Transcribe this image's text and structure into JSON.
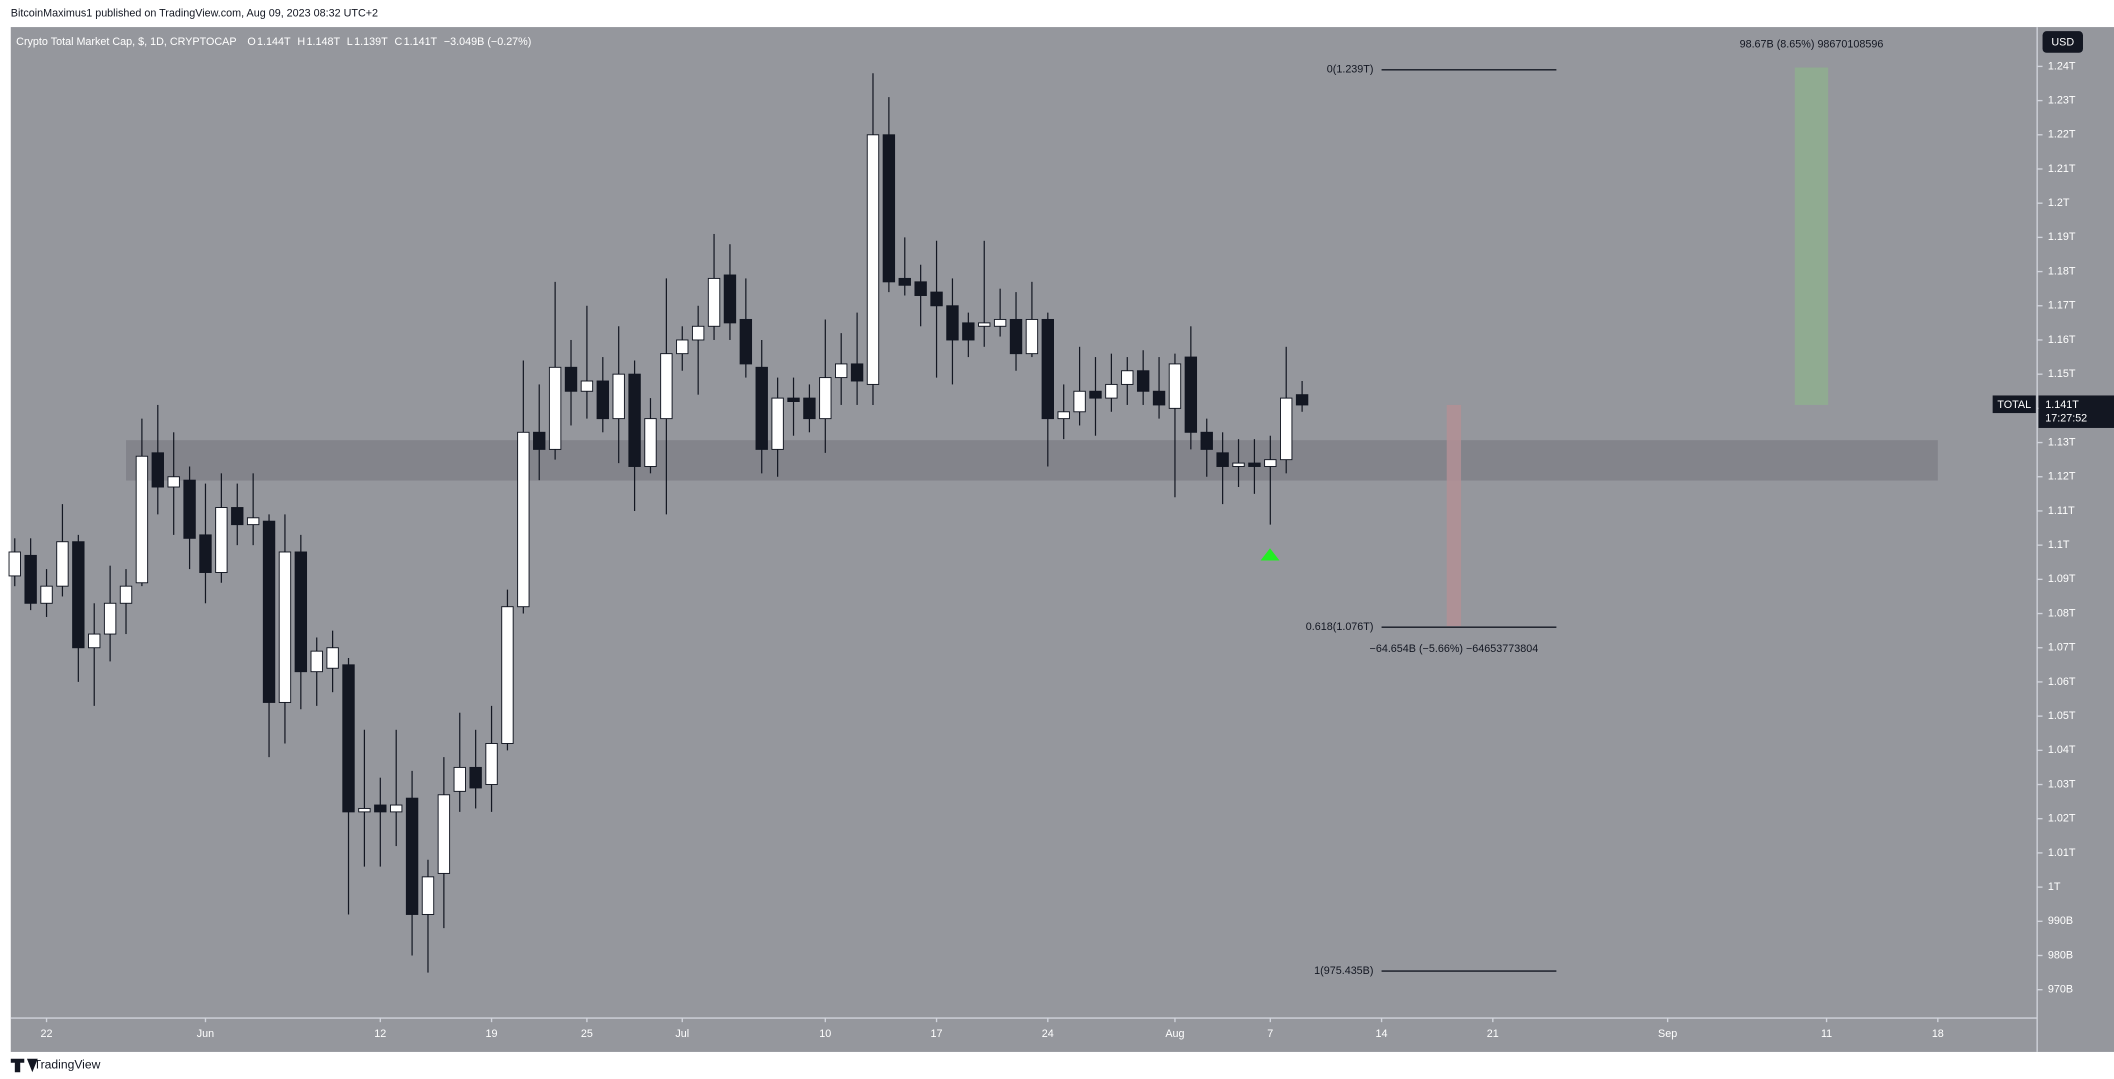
{
  "header": {
    "byline": "BitcoinMaximus1 published on TradingView.com, Aug 09, 2023 08:32 UTC+2",
    "brand": "TradingView"
  },
  "chart_data": {
    "type": "candlestick",
    "title": "Crypto Total Market Cap, $, 1D, CRYPTOCAP",
    "legend_ohlc": [
      {
        "key": "O",
        "value": "1.144T"
      },
      {
        "key": "H",
        "value": "1.148T"
      },
      {
        "key": "L",
        "value": "1.139T"
      },
      {
        "key": "C",
        "value": "1.141T"
      }
    ],
    "legend_change": "−3.049B (−0.27%)",
    "currency": "USD",
    "up_color": "#ffffff",
    "down_color": "#131722",
    "background": "#95979d",
    "open": [
      1091,
      1097,
      1083,
      1088,
      1101,
      1070,
      1074,
      1083,
      1089,
      1127,
      1117,
      1119,
      1103,
      1092,
      1111,
      1106,
      1107,
      1054,
      1098,
      1063,
      1064,
      1065,
      1022,
      1024,
      1022,
      1026,
      992,
      1004,
      1028,
      1035,
      1030,
      1042,
      1082,
      1133,
      1128,
      1152,
      1145,
      1148,
      1137,
      1150,
      1123,
      1137,
      1156,
      1160,
      1164,
      1179,
      1166,
      1152,
      1128,
      1143,
      1143,
      1137,
      1149,
      1153,
      1147,
      1220,
      1178,
      1177,
      1174,
      1170,
      1165,
      1164,
      1164,
      1166,
      1156,
      1166,
      1137,
      1139,
      1145,
      1143,
      1147,
      1151,
      1145,
      1140,
      1155,
      1133,
      1127,
      1123,
      1124,
      1123,
      1125,
      1144
    ],
    "high": [
      1102,
      1102,
      1093,
      1112,
      1103,
      1083,
      1094,
      1093,
      1137,
      1141,
      1133,
      1123,
      1118,
      1121,
      1118,
      1121,
      1109,
      1109,
      1103,
      1073,
      1075,
      1067,
      1046,
      1032,
      1046,
      1034,
      1008,
      1038,
      1051,
      1046,
      1053,
      1087,
      1154,
      1147,
      1177,
      1160,
      1170,
      1155,
      1164,
      1154,
      1143,
      1178,
      1164,
      1170,
      1191,
      1188,
      1178,
      1160,
      1149,
      1149,
      1147,
      1166,
      1162,
      1168,
      1238,
      1231,
      1190,
      1182,
      1189,
      1178,
      1168,
      1189,
      1175,
      1174,
      1177,
      1168,
      1147,
      1158,
      1155,
      1156,
      1155,
      1157,
      1155,
      1156,
      1164,
      1137,
      1133,
      1131,
      1131,
      1132,
      1158,
      1148
    ],
    "low": [
      1088,
      1081,
      1079,
      1085,
      1060,
      1053,
      1066,
      1074,
      1088,
      1109,
      1103,
      1093,
      1083,
      1089,
      1100,
      1100,
      1038,
      1042,
      1052,
      1053,
      1057,
      992,
      1006,
      1006,
      1012,
      980,
      975,
      988,
      1022,
      1023,
      1022,
      1040,
      1080,
      1119,
      1125,
      1135,
      1137,
      1133,
      1124,
      1110,
      1121,
      1109,
      1151,
      1144,
      1160,
      1160,
      1149,
      1121,
      1120,
      1132,
      1133,
      1127,
      1141,
      1141,
      1141,
      1174,
      1173,
      1164,
      1149,
      1147,
      1155,
      1158,
      1161,
      1151,
      1155,
      1123,
      1131,
      1135,
      1132,
      1139,
      1141,
      1141,
      1137,
      1114,
      1128,
      1120,
      1112,
      1117,
      1115,
      1106,
      1121,
      1139
    ],
    "close": [
      1098,
      1083,
      1088,
      1101,
      1070,
      1074,
      1083,
      1088,
      1126,
      1117,
      1120,
      1102,
      1092,
      1111,
      1106,
      1108,
      1054,
      1098,
      1063,
      1069,
      1070,
      1022,
      1023,
      1022,
      1024,
      992,
      1003,
      1027,
      1035,
      1029,
      1042,
      1082,
      1133,
      1128,
      1152,
      1145,
      1148,
      1137,
      1150,
      1123,
      1137,
      1156,
      1160,
      1164,
      1178,
      1165,
      1153,
      1128,
      1143,
      1142,
      1137,
      1149,
      1153,
      1148,
      1220,
      1177,
      1176,
      1173,
      1170,
      1160,
      1160,
      1165,
      1166,
      1156,
      1166,
      1137,
      1139,
      1145,
      1143,
      1147,
      1151,
      1145,
      1141,
      1153,
      1133,
      1128,
      1123,
      1124,
      1123,
      1125,
      1143,
      1141
    ],
    "xlim": [
      -0.25,
      127.25
    ],
    "xticks": [
      {
        "value": 2,
        "label": "22"
      },
      {
        "value": 12,
        "label": "Jun"
      },
      {
        "value": 23,
        "label": "12"
      },
      {
        "value": 30,
        "label": "19"
      },
      {
        "value": 36,
        "label": "25"
      },
      {
        "value": 42,
        "label": "Jul"
      },
      {
        "value": 51,
        "label": "10"
      },
      {
        "value": 58,
        "label": "17"
      },
      {
        "value": 65,
        "label": "24"
      },
      {
        "value": 73,
        "label": "Aug"
      },
      {
        "value": 79,
        "label": "7"
      },
      {
        "value": 86,
        "label": "14"
      },
      {
        "value": 93,
        "label": "21"
      },
      {
        "value": 104,
        "label": "Sep"
      },
      {
        "value": 114,
        "label": "11"
      },
      {
        "value": 121,
        "label": "18"
      }
    ],
    "ylim": [
      961.7,
      1251.5
    ],
    "yticks": [
      {
        "value": 1240,
        "label": "1.24T"
      },
      {
        "value": 1230,
        "label": "1.23T"
      },
      {
        "value": 1220,
        "label": "1.22T"
      },
      {
        "value": 1210,
        "label": "1.21T"
      },
      {
        "value": 1200,
        "label": "1.2T"
      },
      {
        "value": 1190,
        "label": "1.19T"
      },
      {
        "value": 1180,
        "label": "1.18T"
      },
      {
        "value": 1170,
        "label": "1.17T"
      },
      {
        "value": 1160,
        "label": "1.16T"
      },
      {
        "value": 1150,
        "label": "1.15T"
      },
      {
        "value": 1140,
        "label": "1.14T"
      },
      {
        "value": 1130,
        "label": "1.13T"
      },
      {
        "value": 1120,
        "label": "1.12T"
      },
      {
        "value": 1110,
        "label": "1.11T"
      },
      {
        "value": 1100,
        "label": "1.1T"
      },
      {
        "value": 1090,
        "label": "1.09T"
      },
      {
        "value": 1080,
        "label": "1.08T"
      },
      {
        "value": 1070,
        "label": "1.07T"
      },
      {
        "value": 1060,
        "label": "1.06T"
      },
      {
        "value": 1050,
        "label": "1.05T"
      },
      {
        "value": 1040,
        "label": "1.04T"
      },
      {
        "value": 1030,
        "label": "1.03T"
      },
      {
        "value": 1020,
        "label": "1.02T"
      },
      {
        "value": 1010,
        "label": "1.01T"
      },
      {
        "value": 1000,
        "label": "1T"
      },
      {
        "value": 990,
        "label": "990B"
      },
      {
        "value": 980,
        "label": "980B"
      },
      {
        "value": 970,
        "label": "970B"
      }
    ],
    "zone": {
      "from": 1118.9,
      "to": 1130.7,
      "x": [
        7,
        121
      ],
      "color": "#7e8087"
    },
    "fib": {
      "x": [
        86,
        97
      ],
      "levels": [
        {
          "label": "0(1.239T)",
          "value": 1239
        },
        {
          "label": "0.618(1.076T)",
          "value": 1076
        },
        {
          "label": "1(975.435B)",
          "value": 975.435
        }
      ]
    },
    "positions": [
      {
        "label": "98.67B (8.65%) 98670108596",
        "from": 1141,
        "to": 1239.67,
        "x": [
          112,
          114.1
        ],
        "color": "#8fae8f",
        "label_side": "top"
      },
      {
        "label": "−64.654B (−5.66%) −64653773804",
        "from": 1141,
        "to": 1076.35,
        "x": [
          90.1,
          91
        ],
        "color": "#b38f95",
        "label_side": "bottom"
      }
    ],
    "last_price": {
      "name": "TOTAL",
      "value": 1141,
      "label": "1.141T",
      "countdown": "17:27:52"
    }
  }
}
